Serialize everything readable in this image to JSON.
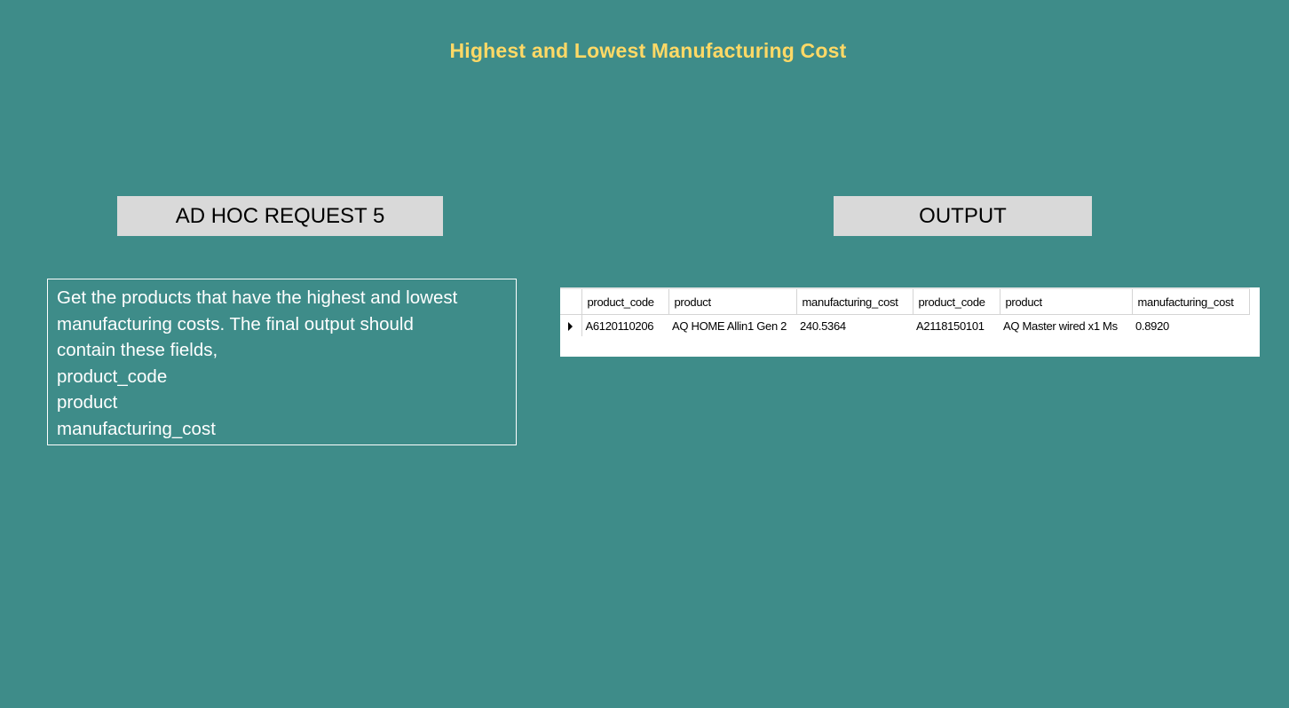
{
  "title": "Highest and Lowest Manufacturing Cost",
  "request_label": "AD HOC REQUEST 5",
  "output_label": "OUTPUT",
  "description_lines": [
    "Get the products that have the highest and lowest",
    "manufacturing costs. The final output should",
    "contain these fields,",
    "product_code",
    "product",
    "manufacturing_cost"
  ],
  "result": {
    "columns": [
      "product_code",
      "product",
      "manufacturing_cost",
      "product_code",
      "product",
      "manufacturing_cost"
    ],
    "rows": [
      [
        "A6120110206",
        "AQ HOME Allin1 Gen 2",
        "240.5364",
        "A2118150101",
        "AQ Master wired x1 Ms",
        "0.8920"
      ]
    ]
  }
}
